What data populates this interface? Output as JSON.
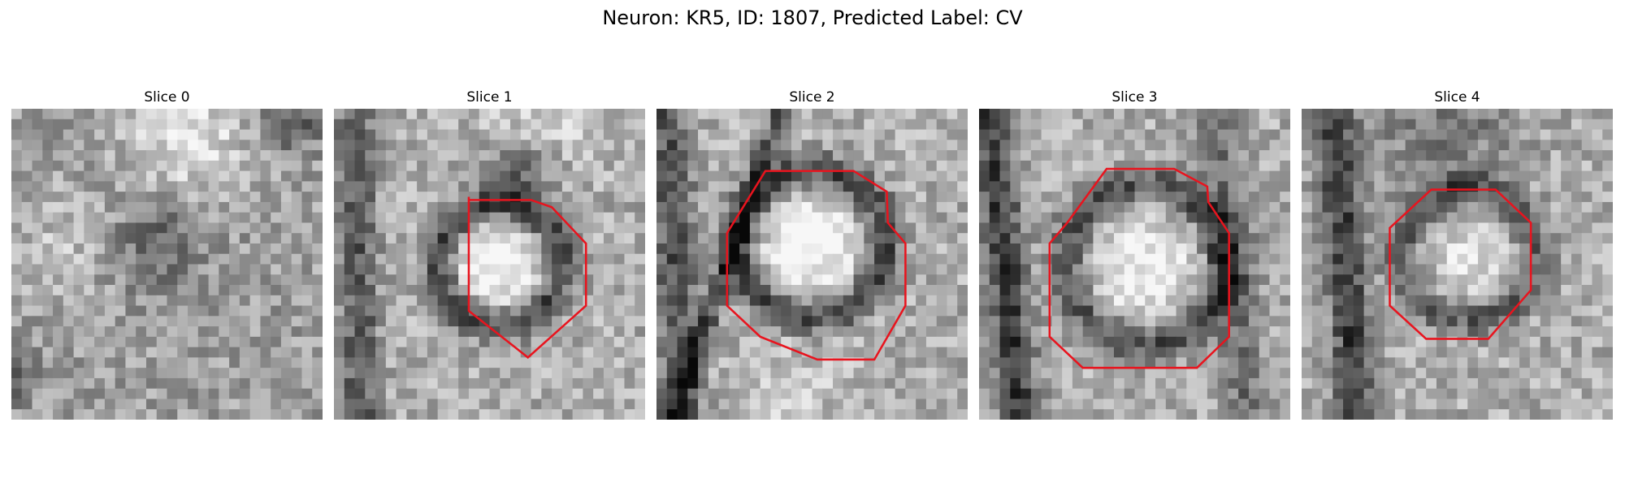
{
  "figure": {
    "title": "Neuron: KR5, ID: 1807, Predicted Label: CV"
  },
  "colors": {
    "contour": "#e8141e",
    "background": "#ffffff"
  },
  "panels": [
    {
      "title": "Slice 0",
      "has_contour": false
    },
    {
      "title": "Slice 1",
      "has_contour": true
    },
    {
      "title": "Slice 2",
      "has_contour": true
    },
    {
      "title": "Slice 3",
      "has_contour": true
    },
    {
      "title": "Slice 4",
      "has_contour": true
    }
  ]
}
